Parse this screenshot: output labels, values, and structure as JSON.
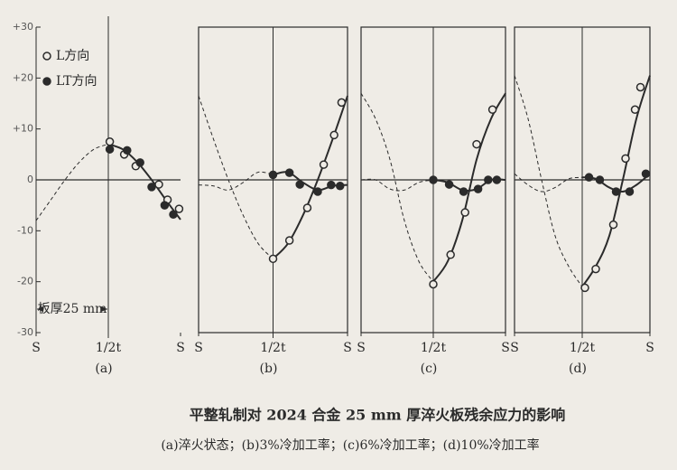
{
  "title": "平整轧制对 2024 合金 25 mm 厚淬火板残余应力的影响",
  "caption": "(a)淬火状态；(b)3%冷加工率；(c)6%冷加工率；(d)10%冷加工率",
  "chart_data": [
    {
      "type": "line",
      "label": "(a)",
      "frame": false,
      "legend": "upper left",
      "annotation": "板厚25 mm",
      "xlim": [
        0,
        1
      ],
      "xticks": [
        {
          "value": 0,
          "label": "S"
        },
        {
          "value": 0.5,
          "label": "1/2t"
        },
        {
          "value": 1,
          "label": "S"
        }
      ],
      "ylim": [
        -30,
        30
      ],
      "yticks": [
        {
          "value": 30,
          "label": "+30"
        },
        {
          "value": 20,
          "label": "+20"
        },
        {
          "value": 10,
          "label": "+10"
        },
        0,
        -10,
        -20,
        -30
      ],
      "series": [
        {
          "name": "L方向",
          "marker": "open",
          "x": [
            0.51,
            0.61,
            0.69,
            0.85,
            0.91,
            0.99
          ],
          "values": [
            7.5,
            5,
            2.7,
            -0.9,
            -3.9,
            -5.7
          ]
        },
        {
          "name": "LT方向",
          "marker": "filled",
          "x": [
            0.51,
            0.63,
            0.72,
            0.8,
            0.89,
            0.95
          ],
          "values": [
            6,
            5.8,
            3.4,
            -1.4,
            -5,
            -6.8
          ]
        },
        {
          "style": "solid",
          "x": [
            0.5,
            0.6,
            0.7,
            0.8,
            0.9,
            1
          ],
          "values": [
            7,
            6,
            3.5,
            0,
            -4,
            -7.8
          ]
        },
        {
          "style": "dashed",
          "x": [
            0,
            0.1,
            0.2,
            0.3,
            0.4,
            0.5
          ],
          "values": [
            -8,
            -4,
            0,
            3.5,
            6,
            7
          ]
        }
      ]
    },
    {
      "type": "line",
      "label": "(b)",
      "frame": true,
      "xlim": [
        0,
        1
      ],
      "xticks": [
        {
          "value": 0,
          "label": "S"
        },
        {
          "value": 0.5,
          "label": "1/2t"
        },
        {
          "value": 1,
          "label": "S"
        }
      ],
      "ylim": [
        -30,
        30
      ],
      "series": [
        {
          "marker": "open",
          "x": [
            0.5,
            0.61,
            0.73,
            0.84,
            0.91,
            0.96
          ],
          "values": [
            -15.5,
            -11.9,
            -5.5,
            3,
            8.8,
            15.2
          ]
        },
        {
          "marker": "filled",
          "x": [
            0.5,
            0.61,
            0.68,
            0.8,
            0.89,
            0.95
          ],
          "values": [
            1,
            1.4,
            -0.9,
            -2.3,
            -1,
            -1.2
          ]
        },
        {
          "style": "solid",
          "x": [
            0.5,
            0.6,
            0.7,
            0.8,
            0.9,
            1
          ],
          "values": [
            -15.5,
            -12.5,
            -7,
            0,
            8,
            16.5
          ]
        },
        {
          "style": "solid",
          "x": [
            0.5,
            0.6,
            0.7,
            0.8,
            0.9,
            1
          ],
          "values": [
            1,
            1.5,
            -0.5,
            -2,
            -1.2,
            -1
          ]
        },
        {
          "style": "dashed",
          "x": [
            0,
            0.1,
            0.2,
            0.3,
            0.4,
            0.5
          ],
          "values": [
            16.5,
            8,
            0,
            -7,
            -12.5,
            -15.5
          ]
        },
        {
          "style": "dashed",
          "x": [
            0,
            0.1,
            0.2,
            0.3,
            0.4,
            0.5
          ],
          "values": [
            -1,
            -1.2,
            -2,
            -0.5,
            1.5,
            1
          ]
        }
      ]
    },
    {
      "type": "line",
      "label": "(c)",
      "frame": true,
      "xlim": [
        0,
        1
      ],
      "xticks": [
        {
          "value": 0,
          "label": "S"
        },
        {
          "value": 0.5,
          "label": "1/2t"
        },
        {
          "value": 1,
          "label": "S"
        }
      ],
      "ylim": [
        -30,
        30
      ],
      "series": [
        {
          "marker": "open",
          "x": [
            0.5,
            0.62,
            0.72,
            0.8,
            0.91
          ],
          "values": [
            -20.5,
            -14.7,
            -6.4,
            7,
            13.8
          ]
        },
        {
          "marker": "filled",
          "x": [
            0.5,
            0.61,
            0.71,
            0.81,
            0.88,
            0.94
          ],
          "values": [
            0,
            -0.9,
            -2.3,
            -1.8,
            0,
            0
          ]
        },
        {
          "style": "solid",
          "x": [
            0.5,
            0.6,
            0.7,
            0.8,
            0.9,
            1
          ],
          "values": [
            -20,
            -16,
            -8,
            4,
            12,
            17
          ]
        },
        {
          "style": "solid",
          "x": [
            0.5,
            0.6,
            0.7,
            0.8,
            0.9,
            1
          ],
          "values": [
            0,
            -0.5,
            -2,
            -1.8,
            0,
            0
          ]
        },
        {
          "style": "dashed",
          "x": [
            0,
            0.1,
            0.2,
            0.3,
            0.4,
            0.5
          ],
          "values": [
            17,
            12,
            4,
            -8,
            -16,
            -20
          ]
        },
        {
          "style": "dashed",
          "x": [
            0,
            0.1,
            0.2,
            0.3,
            0.4,
            0.5
          ],
          "values": [
            0,
            0,
            -1.8,
            -2,
            -0.5,
            0
          ]
        }
      ]
    },
    {
      "type": "line",
      "label": "(d)",
      "frame": true,
      "xlim": [
        0,
        1
      ],
      "xticks": [
        {
          "value": 0,
          "label": "S"
        },
        {
          "value": 0.5,
          "label": "1/2t"
        },
        {
          "value": 1,
          "label": "S"
        }
      ],
      "ylim": [
        -30,
        30
      ],
      "series": [
        {
          "marker": "open",
          "x": [
            0.52,
            0.6,
            0.73,
            0.82,
            0.89,
            0.93
          ],
          "values": [
            -21.2,
            -17.5,
            -8.8,
            4.2,
            13.8,
            18.2
          ]
        },
        {
          "marker": "filled",
          "x": [
            0.55,
            0.63,
            0.75,
            0.85,
            0.97
          ],
          "values": [
            0.5,
            0,
            -2.3,
            -2.3,
            1.2
          ]
        },
        {
          "style": "solid",
          "x": [
            0.5,
            0.6,
            0.7,
            0.8,
            0.9,
            1
          ],
          "values": [
            -21,
            -17,
            -11,
            0,
            12,
            20.5
          ]
        },
        {
          "style": "solid",
          "x": [
            0.5,
            0.6,
            0.7,
            0.8,
            0.9,
            1
          ],
          "values": [
            0.5,
            0.2,
            -1.5,
            -2.3,
            -1,
            1.2
          ]
        },
        {
          "style": "dashed",
          "x": [
            0,
            0.1,
            0.2,
            0.3,
            0.4,
            0.5
          ],
          "values": [
            20.5,
            12,
            0,
            -11,
            -17,
            -21
          ]
        },
        {
          "style": "dashed",
          "x": [
            0,
            0.1,
            0.2,
            0.3,
            0.4,
            0.5
          ],
          "values": [
            1.2,
            -1,
            -2.3,
            -1.5,
            0.2,
            0.5
          ]
        }
      ]
    }
  ]
}
